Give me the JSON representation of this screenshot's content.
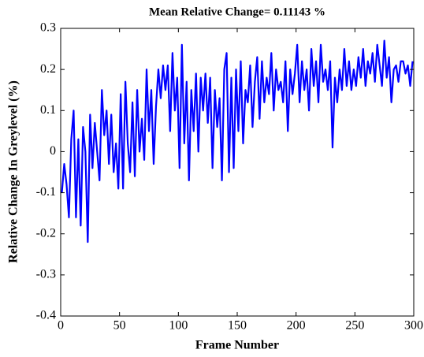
{
  "chart_data": {
    "type": "line",
    "title": "Mean Relative Change= 0.11143 %",
    "xlabel": "Frame Number",
    "ylabel": "Relative Change In Greylevel (%)",
    "color": "#0000ff",
    "xlim": [
      0,
      300
    ],
    "xticks": [
      0,
      50,
      100,
      150,
      200,
      250,
      300
    ],
    "ylim": [
      -0.4,
      0.3
    ],
    "yticks": [
      -0.4,
      -0.3,
      -0.2,
      -0.1,
      0,
      0.1,
      0.2,
      0.3
    ],
    "x": [
      1,
      3,
      5,
      7,
      9,
      11,
      13,
      15,
      17,
      19,
      21,
      23,
      25,
      27,
      29,
      31,
      33,
      35,
      37,
      39,
      41,
      43,
      45,
      47,
      49,
      51,
      53,
      55,
      57,
      59,
      61,
      63,
      65,
      67,
      69,
      71,
      73,
      75,
      77,
      79,
      81,
      83,
      85,
      87,
      89,
      91,
      93,
      95,
      97,
      99,
      101,
      103,
      105,
      107,
      109,
      111,
      113,
      115,
      117,
      119,
      121,
      123,
      125,
      127,
      129,
      131,
      133,
      135,
      137,
      139,
      141,
      143,
      145,
      147,
      149,
      151,
      153,
      155,
      157,
      159,
      161,
      163,
      165,
      167,
      169,
      171,
      173,
      175,
      177,
      179,
      181,
      183,
      185,
      187,
      189,
      191,
      193,
      195,
      197,
      199,
      201,
      203,
      205,
      207,
      209,
      211,
      213,
      215,
      217,
      219,
      221,
      223,
      225,
      227,
      229,
      231,
      233,
      235,
      237,
      239,
      241,
      243,
      245,
      247,
      249,
      251,
      253,
      255,
      257,
      259,
      261,
      263,
      265,
      267,
      269,
      271,
      273,
      275,
      277,
      279,
      281,
      283,
      285,
      287,
      289,
      291,
      293,
      295,
      297,
      299
    ],
    "values": [
      -0.1,
      -0.03,
      -0.08,
      -0.16,
      0.03,
      0.1,
      -0.16,
      0.03,
      -0.18,
      0.06,
      0.0,
      -0.22,
      0.09,
      -0.04,
      0.07,
      0.0,
      -0.07,
      0.15,
      0.04,
      0.1,
      -0.03,
      0.09,
      -0.05,
      0.02,
      -0.09,
      0.14,
      -0.09,
      0.17,
      0.02,
      -0.05,
      0.12,
      -0.06,
      0.15,
      0.0,
      0.08,
      -0.02,
      0.2,
      0.05,
      0.15,
      -0.03,
      0.11,
      0.2,
      0.13,
      0.21,
      0.15,
      0.21,
      0.05,
      0.24,
      0.1,
      0.18,
      -0.04,
      0.26,
      0.02,
      0.17,
      -0.07,
      0.15,
      0.05,
      0.19,
      0.0,
      0.18,
      0.1,
      0.19,
      0.07,
      0.18,
      -0.04,
      0.15,
      0.06,
      0.13,
      -0.07,
      0.2,
      0.24,
      -0.05,
      0.18,
      -0.04,
      0.2,
      0.05,
      0.22,
      0.02,
      0.15,
      0.12,
      0.21,
      0.06,
      0.17,
      0.23,
      0.08,
      0.22,
      0.12,
      0.18,
      0.14,
      0.24,
      0.1,
      0.2,
      0.15,
      0.17,
      0.12,
      0.22,
      0.05,
      0.2,
      0.14,
      0.19,
      0.26,
      0.12,
      0.22,
      0.15,
      0.2,
      0.1,
      0.25,
      0.16,
      0.22,
      0.12,
      0.26,
      0.17,
      0.2,
      0.15,
      0.22,
      0.01,
      0.18,
      0.12,
      0.2,
      0.15,
      0.25,
      0.16,
      0.22,
      0.15,
      0.2,
      0.16,
      0.23,
      0.18,
      0.25,
      0.16,
      0.22,
      0.19,
      0.24,
      0.17,
      0.26,
      0.21,
      0.16,
      0.27,
      0.18,
      0.23,
      0.12,
      0.2,
      0.21,
      0.17,
      0.22,
      0.22,
      0.19,
      0.21,
      0.16,
      0.22
    ]
  }
}
